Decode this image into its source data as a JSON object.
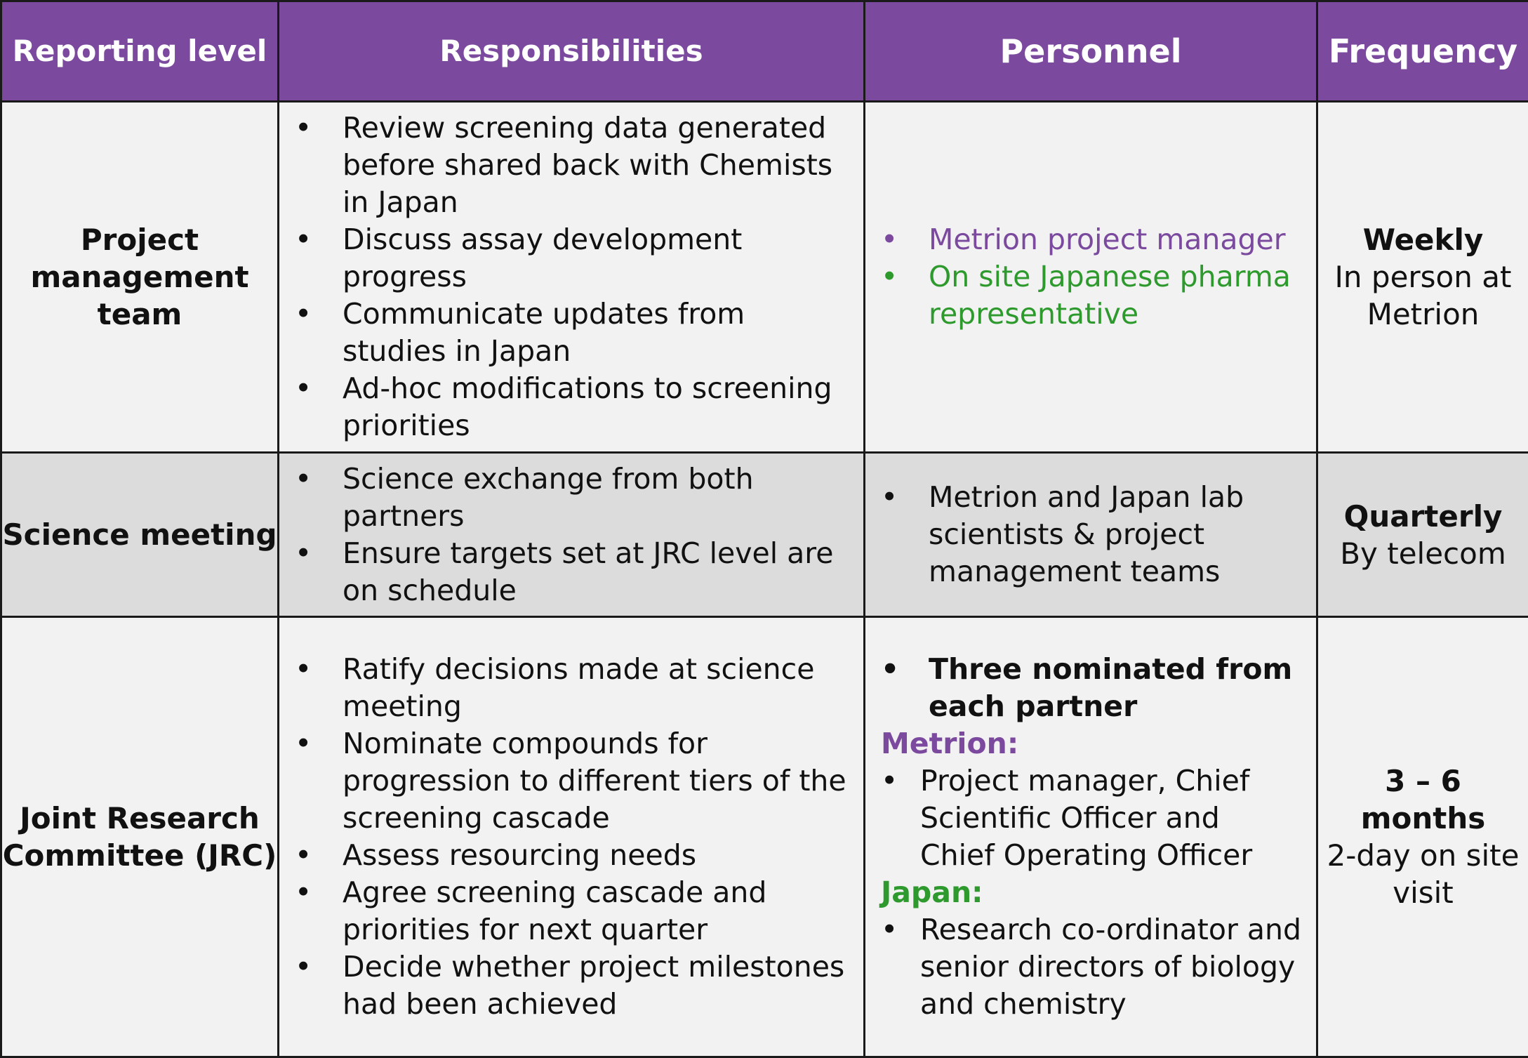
{
  "header": {
    "level": "Reporting level",
    "responsibilities": "Responsibilities",
    "personnel": "Personnel",
    "frequency": "Frequency"
  },
  "rows": [
    {
      "level": "Project management team",
      "responsibilities": [
        "Review screening data generated before shared back with Chemists in Japan",
        "Discuss assay development progress",
        "Communicate  updates from studies in Japan",
        "Ad-hoc modifications to screening priorities"
      ],
      "personnel": [
        "Metrion project manager",
        "On site Japanese pharma representative"
      ],
      "frequency_bold": "Weekly",
      "frequency_detail": "In person at Metrion"
    },
    {
      "level": "Science meeting",
      "responsibilities": [
        "Science exchange from both partners",
        "Ensure targets set at JRC level are on schedule"
      ],
      "personnel": [
        "Metrion and Japan lab scientists & project management teams"
      ],
      "frequency_bold": "Quarterly",
      "frequency_detail": "By telecom"
    },
    {
      "level": "Joint Research Committee (JRC)",
      "responsibilities": [
        "Ratify decisions made at science meeting",
        "Nominate compounds for progression to different tiers of the screening cascade",
        "Assess resourcing needs",
        "Agree screening cascade and priorities for next quarter",
        "Decide whether project milestones had been achieved"
      ],
      "personnel_intro": "Three  nominated from each partner",
      "metrion_label": "Metrion:",
      "metrion_members": "Project manager, Chief Scientific Officer and Chief Operating Officer",
      "japan_label": "Japan:",
      "japan_members": "Research co-ordinator and senior directors of biology and chemistry",
      "frequency_bold": "3 – 6 months",
      "frequency_detail": "2-day on site visit"
    }
  ],
  "colors": {
    "header_bg": "#7b4a9e",
    "metrion_purple": "#7b4a9e",
    "japan_green": "#2e9a2e",
    "row_light": "#f2f2f2",
    "row_shaded": "#dcdcdc"
  }
}
